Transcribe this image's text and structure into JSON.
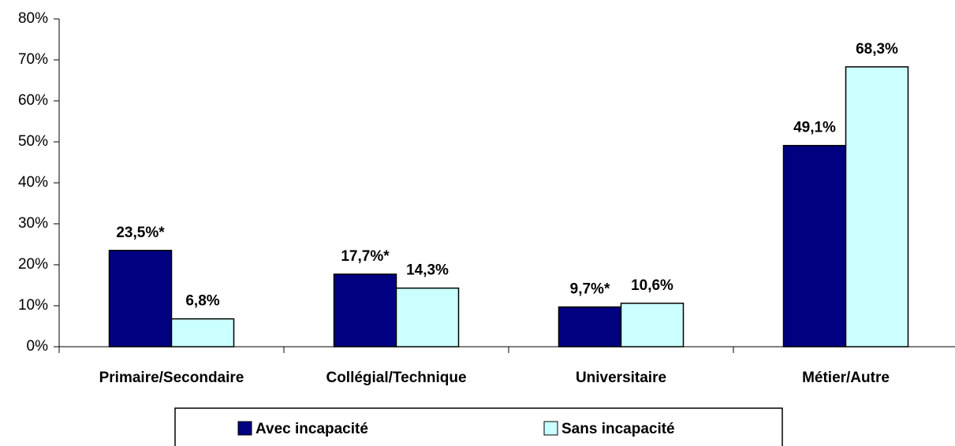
{
  "chart_data": {
    "type": "bar",
    "categories": [
      "Primaire/Secondaire",
      "Collégial/Technique",
      "Universitaire",
      "Métier/Autre"
    ],
    "series": [
      {
        "name": "Avec incapacité",
        "color": "#000080",
        "values": [
          23.5,
          17.7,
          9.7,
          49.1
        ],
        "value_labels": [
          "23,5%*",
          "17,7%*",
          "9,7%*",
          "49,1%"
        ]
      },
      {
        "name": "Sans incapacité",
        "color": "#ccffff",
        "values": [
          6.8,
          14.3,
          10.6,
          68.3
        ],
        "value_labels": [
          "6,8%",
          "14,3%",
          "10,6%",
          "68,3%"
        ]
      }
    ],
    "ylim": [
      0,
      80
    ],
    "yticks": [
      {
        "value": 0,
        "label": "0%"
      },
      {
        "value": 10,
        "label": "10%"
      },
      {
        "value": 20,
        "label": "20%"
      },
      {
        "value": 30,
        "label": "30%"
      },
      {
        "value": 40,
        "label": "40%"
      },
      {
        "value": 50,
        "label": "50%"
      },
      {
        "value": 60,
        "label": "60%"
      },
      {
        "value": 70,
        "label": "70%"
      },
      {
        "value": 80,
        "label": "80%"
      }
    ],
    "legend": "bottom"
  }
}
